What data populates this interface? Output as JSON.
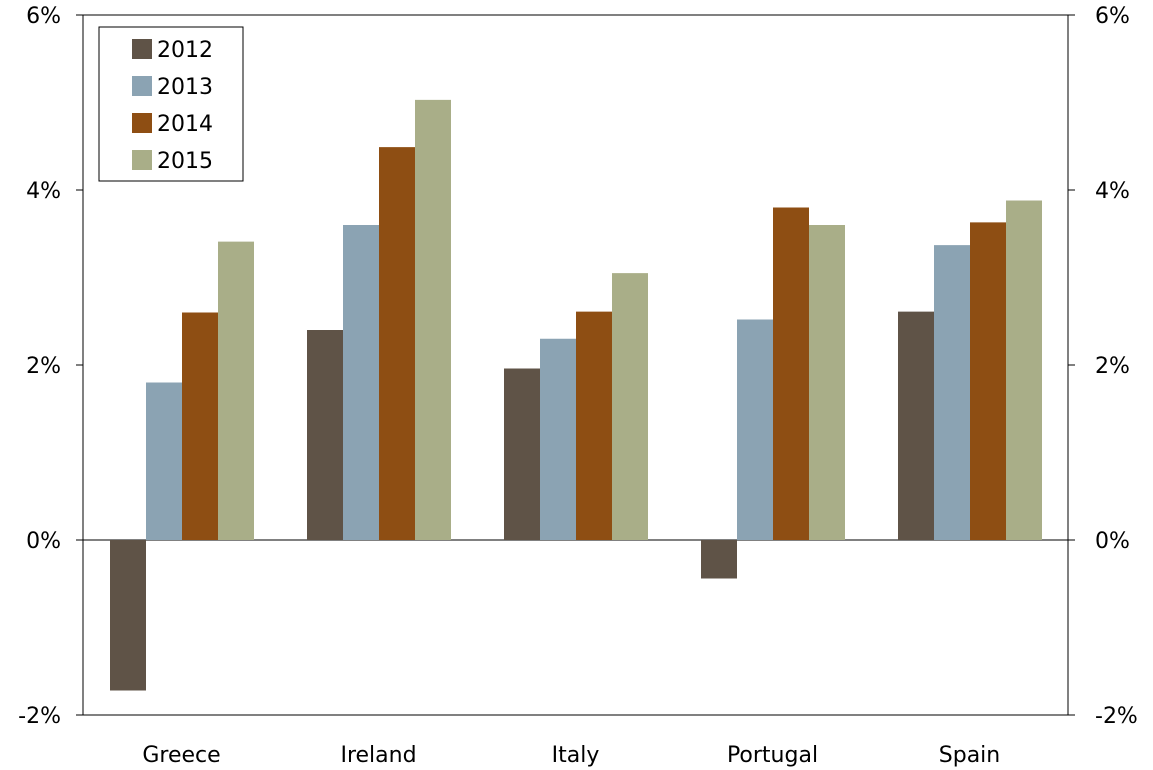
{
  "chart_data": {
    "type": "bar",
    "title": "",
    "xlabel": "",
    "ylabel": "",
    "categories": [
      "Greece",
      "Ireland",
      "Italy",
      "Portugal",
      "Spain"
    ],
    "series": [
      {
        "name": "2012",
        "color": "#5f5347",
        "values": [
          -1.72,
          2.4,
          1.96,
          -0.44,
          2.61
        ]
      },
      {
        "name": "2013",
        "color": "#8ba3b3",
        "values": [
          1.8,
          3.6,
          2.3,
          2.52,
          3.37
        ]
      },
      {
        "name": "2014",
        "color": "#8e4e13",
        "values": [
          2.6,
          4.49,
          2.61,
          3.8,
          3.63
        ]
      },
      {
        "name": "2015",
        "color": "#a9ae88",
        "values": [
          3.41,
          5.03,
          3.05,
          3.6,
          3.88
        ]
      }
    ],
    "ylim": [
      -2,
      6
    ],
    "yticks": [
      -2,
      0,
      2,
      4,
      6
    ],
    "ytick_labels": [
      "-2%",
      "0%",
      "2%",
      "4%",
      "6%"
    ],
    "secondary_yaxis": true,
    "grid": false,
    "legend_position": "top-left"
  }
}
